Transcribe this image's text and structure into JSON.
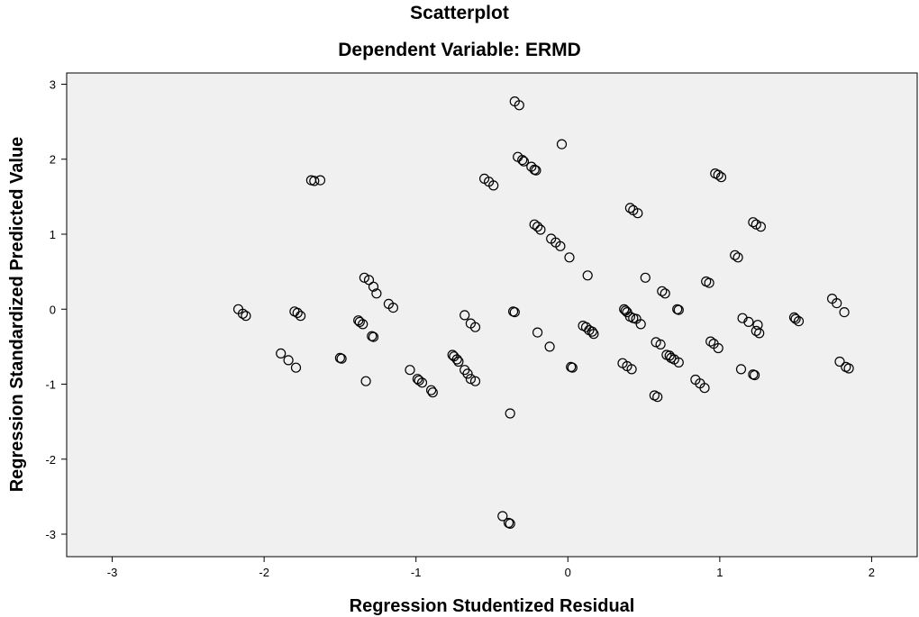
{
  "chart_data": {
    "type": "scatter",
    "title": "Scatterplot",
    "subtitle": "Dependent Variable: ERMD",
    "xlabel": "Regression Studentized Residual",
    "ylabel": "Regression Standardized Predicted Value",
    "xlim": [
      -3.3,
      2.3
    ],
    "ylim": [
      -3.3,
      3.15
    ],
    "xticks": [
      -3,
      -2,
      -1,
      0,
      1,
      2
    ],
    "yticks": [
      -3,
      -2,
      -1,
      0,
      1,
      2,
      3
    ],
    "grid": false,
    "background": "#f0f0f0",
    "marker": "hollow-circle",
    "points": [
      [
        -0.35,
        2.77
      ],
      [
        -0.32,
        2.72
      ],
      [
        -0.04,
        2.2
      ],
      [
        -0.33,
        2.03
      ],
      [
        -0.3,
        1.99
      ],
      [
        -0.29,
        1.97
      ],
      [
        -0.24,
        1.9
      ],
      [
        -0.22,
        1.86
      ],
      [
        -0.21,
        1.85
      ],
      [
        -1.69,
        1.72
      ],
      [
        -1.67,
        1.71
      ],
      [
        -1.63,
        1.72
      ],
      [
        -0.55,
        1.74
      ],
      [
        -0.52,
        1.7
      ],
      [
        -0.49,
        1.65
      ],
      [
        0.97,
        1.81
      ],
      [
        0.99,
        1.79
      ],
      [
        1.01,
        1.76
      ],
      [
        0.41,
        1.35
      ],
      [
        0.43,
        1.32
      ],
      [
        0.46,
        1.28
      ],
      [
        1.22,
        1.16
      ],
      [
        1.24,
        1.13
      ],
      [
        1.27,
        1.1
      ],
      [
        -0.22,
        1.13
      ],
      [
        -0.2,
        1.1
      ],
      [
        -0.18,
        1.06
      ],
      [
        -0.11,
        0.94
      ],
      [
        -0.08,
        0.89
      ],
      [
        -0.05,
        0.84
      ],
      [
        0.01,
        0.69
      ],
      [
        1.1,
        0.72
      ],
      [
        1.12,
        0.69
      ],
      [
        0.13,
        0.45
      ],
      [
        0.51,
        0.42
      ],
      [
        0.91,
        0.37
      ],
      [
        0.93,
        0.35
      ],
      [
        0.62,
        0.24
      ],
      [
        0.64,
        0.21
      ],
      [
        1.74,
        0.14
      ],
      [
        1.77,
        0.08
      ],
      [
        -1.34,
        0.42
      ],
      [
        -1.31,
        0.39
      ],
      [
        -1.28,
        0.3
      ],
      [
        -1.26,
        0.21
      ],
      [
        -1.18,
        0.07
      ],
      [
        -1.15,
        0.02
      ],
      [
        -2.17,
        0.0
      ],
      [
        -2.14,
        -0.06
      ],
      [
        -2.12,
        -0.09
      ],
      [
        -1.8,
        -0.03
      ],
      [
        -1.78,
        -0.05
      ],
      [
        -1.76,
        -0.09
      ],
      [
        -0.36,
        -0.03
      ],
      [
        -0.35,
        -0.04
      ],
      [
        -0.68,
        -0.08
      ],
      [
        -0.64,
        -0.19
      ],
      [
        -0.61,
        -0.24
      ],
      [
        -1.38,
        -0.15
      ],
      [
        -1.37,
        -0.17
      ],
      [
        -1.35,
        -0.2
      ],
      [
        -1.29,
        -0.36
      ],
      [
        -1.28,
        -0.37
      ],
      [
        0.72,
        0.0
      ],
      [
        0.73,
        -0.01
      ],
      [
        0.37,
        0.0
      ],
      [
        0.38,
        -0.02
      ],
      [
        0.39,
        -0.04
      ],
      [
        0.41,
        -0.1
      ],
      [
        0.43,
        -0.12
      ],
      [
        0.45,
        -0.13
      ],
      [
        0.48,
        -0.2
      ],
      [
        1.82,
        -0.04
      ],
      [
        1.15,
        -0.12
      ],
      [
        1.19,
        -0.17
      ],
      [
        1.49,
        -0.11
      ],
      [
        1.5,
        -0.13
      ],
      [
        1.52,
        -0.16
      ],
      [
        1.25,
        -0.21
      ],
      [
        1.24,
        -0.29
      ],
      [
        1.26,
        -0.32
      ],
      [
        0.1,
        -0.22
      ],
      [
        0.12,
        -0.24
      ],
      [
        0.14,
        -0.28
      ],
      [
        0.16,
        -0.3
      ],
      [
        0.17,
        -0.33
      ],
      [
        -0.2,
        -0.31
      ],
      [
        0.58,
        -0.44
      ],
      [
        0.61,
        -0.47
      ],
      [
        0.94,
        -0.43
      ],
      [
        0.96,
        -0.46
      ],
      [
        0.99,
        -0.52
      ],
      [
        -0.12,
        -0.5
      ],
      [
        0.65,
        -0.61
      ],
      [
        0.67,
        -0.62
      ],
      [
        0.68,
        -0.65
      ],
      [
        0.7,
        -0.67
      ],
      [
        0.73,
        -0.71
      ],
      [
        -1.89,
        -0.59
      ],
      [
        -1.84,
        -0.68
      ],
      [
        -1.79,
        -0.78
      ],
      [
        -1.5,
        -0.65
      ],
      [
        -1.49,
        -0.66
      ],
      [
        -0.76,
        -0.61
      ],
      [
        -0.75,
        -0.63
      ],
      [
        -0.73,
        -0.67
      ],
      [
        -0.72,
        -0.7
      ],
      [
        0.36,
        -0.72
      ],
      [
        0.39,
        -0.76
      ],
      [
        0.42,
        -0.8
      ],
      [
        0.02,
        -0.77
      ],
      [
        0.03,
        -0.78
      ],
      [
        1.14,
        -0.8
      ],
      [
        1.79,
        -0.7
      ],
      [
        1.83,
        -0.77
      ],
      [
        1.85,
        -0.79
      ],
      [
        -1.04,
        -0.81
      ],
      [
        -0.99,
        -0.93
      ],
      [
        -0.98,
        -0.95
      ],
      [
        -0.96,
        -0.98
      ],
      [
        -0.9,
        -1.08
      ],
      [
        -0.89,
        -1.11
      ],
      [
        -0.68,
        -0.81
      ],
      [
        -0.66,
        -0.86
      ],
      [
        -0.64,
        -0.93
      ],
      [
        -0.61,
        -0.96
      ],
      [
        -1.33,
        -0.96
      ],
      [
        1.22,
        -0.87
      ],
      [
        1.23,
        -0.88
      ],
      [
        0.84,
        -0.94
      ],
      [
        0.87,
        -0.99
      ],
      [
        0.9,
        -1.05
      ],
      [
        0.57,
        -1.15
      ],
      [
        0.59,
        -1.17
      ],
      [
        -0.38,
        -1.39
      ],
      [
        -0.43,
        -2.76
      ],
      [
        -0.39,
        -2.85
      ],
      [
        -0.38,
        -2.86
      ]
    ]
  }
}
